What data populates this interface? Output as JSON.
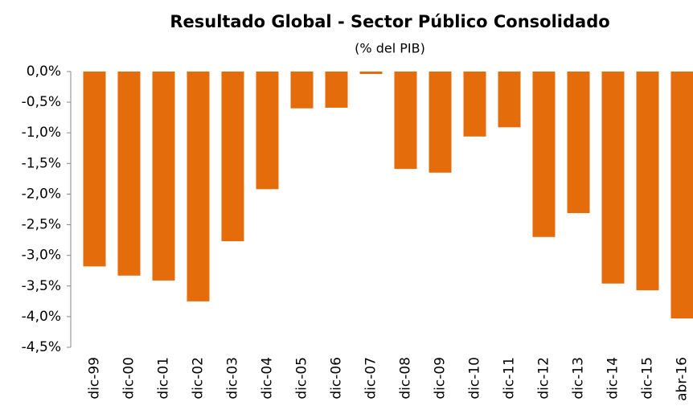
{
  "chart_data": {
    "type": "bar",
    "title": "Resultado Global - Sector Público Consolidado",
    "subtitle": "(% del PIB)",
    "categories": [
      "dic-99",
      "dic-00",
      "dic-01",
      "dic-02",
      "dic-03",
      "dic-04",
      "dic-05",
      "dic-06",
      "dic-07",
      "dic-08",
      "dic-09",
      "dic-10",
      "dic-11",
      "dic-12",
      "dic-13",
      "dic-14",
      "dic-15",
      "abr-16"
    ],
    "values": [
      -3.18,
      -3.33,
      -3.41,
      -3.75,
      -2.77,
      -1.92,
      -0.6,
      -0.59,
      -0.04,
      -1.59,
      -1.65,
      -1.06,
      -0.91,
      -2.7,
      -2.31,
      -3.46,
      -3.57,
      -4.03
    ],
    "color": "#e46c0a",
    "ylim": [
      -4.5,
      0
    ],
    "yticks": [
      {
        "value": 0,
        "label": "0,0%"
      },
      {
        "value": -0.5,
        "label": "-0,5%"
      },
      {
        "value": -1,
        "label": "-1,0%"
      },
      {
        "value": -1.5,
        "label": "-1,5%"
      },
      {
        "value": -2,
        "label": "-2,0%"
      },
      {
        "value": -2.5,
        "label": "-2,5%"
      },
      {
        "value": -3,
        "label": "-3,0%"
      },
      {
        "value": -3.5,
        "label": "-3,5%"
      },
      {
        "value": -4,
        "label": "-4,0%"
      },
      {
        "value": -4.5,
        "label": "-4,5%"
      }
    ],
    "grid": false
  }
}
